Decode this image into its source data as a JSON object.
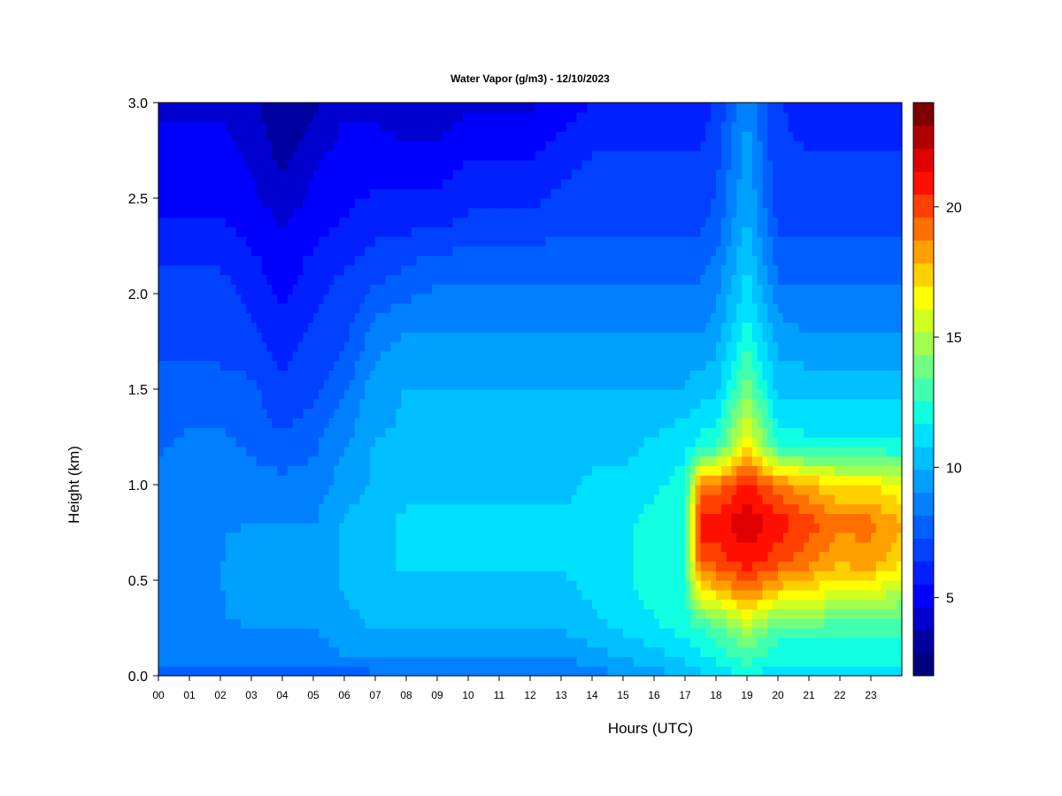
{
  "chart_data": {
    "type": "heatmap",
    "title": "Water Vapor (g/m3) - 12/10/2023",
    "xlabel": "Hours (UTC)",
    "ylabel": "Height (km)",
    "x_ticks": [
      "00",
      "01",
      "02",
      "03",
      "04",
      "05",
      "06",
      "07",
      "08",
      "09",
      "10",
      "11",
      "12",
      "13",
      "14",
      "15",
      "16",
      "17",
      "18",
      "19",
      "20",
      "21",
      "22",
      "23"
    ],
    "y_ticks": [
      "0.0",
      "0.5",
      "1.0",
      "1.5",
      "2.0",
      "2.5",
      "3.0"
    ],
    "xlim": [
      0,
      24
    ],
    "ylim": [
      0,
      3.0
    ],
    "colorbar": {
      "ticks": [
        "5",
        "10",
        "15",
        "20"
      ],
      "range": [
        2,
        24
      ],
      "colors": [
        "#00007f",
        "#00009f",
        "#0000cf",
        "#0000ff",
        "#0020ff",
        "#0040ff",
        "#0060ff",
        "#0080ff",
        "#00a0ff",
        "#00c0ff",
        "#00e0ff",
        "#10ffe0",
        "#40ffb0",
        "#70ff80",
        "#a0ff50",
        "#d0ff20",
        "#ffff00",
        "#ffd000",
        "#ffa000",
        "#ff7000",
        "#ff4000",
        "#ff1000",
        "#df0000",
        "#af0000",
        "#7f0000"
      ]
    },
    "profile_hours": [
      0,
      1,
      2,
      3,
      4,
      5,
      6,
      7,
      8,
      9,
      10,
      11,
      12,
      13,
      14,
      15,
      16,
      17,
      17.5,
      18,
      19,
      20,
      21,
      22,
      23,
      24
    ],
    "profile_heights_km": [
      0.0,
      0.1,
      0.25,
      0.45,
      0.6,
      0.8,
      1.0,
      1.2,
      1.5,
      1.8,
      2.1,
      2.4,
      2.7,
      3.0
    ],
    "values_g_m3": [
      [
        8.0,
        8.5,
        8.5,
        8.5,
        8.5,
        8.5,
        8.5,
        8.0,
        7.5,
        7.0,
        6.5,
        5.5,
        5.0,
        4.5
      ],
      [
        8.0,
        8.5,
        9.0,
        9.0,
        9.0,
        9.0,
        9.0,
        8.5,
        7.5,
        7.0,
        6.5,
        5.5,
        5.0,
        4.5
      ],
      [
        8.0,
        8.5,
        9.0,
        9.0,
        9.0,
        9.0,
        9.0,
        8.5,
        7.5,
        7.0,
        6.5,
        5.5,
        5.0,
        4.5
      ],
      [
        7.5,
        8.5,
        9.0,
        9.5,
        9.5,
        9.0,
        8.5,
        8.0,
        7.5,
        6.5,
        6.0,
        5.0,
        4.5,
        4.0
      ],
      [
        7.5,
        8.5,
        9.0,
        9.5,
        9.5,
        9.0,
        8.5,
        7.5,
        6.5,
        6.0,
        5.0,
        4.5,
        3.5,
        3.0
      ],
      [
        7.5,
        8.5,
        9.0,
        9.5,
        9.5,
        9.0,
        8.5,
        8.0,
        7.0,
        6.5,
        6.0,
        5.0,
        4.5,
        3.5
      ],
      [
        7.5,
        9.0,
        9.5,
        10.0,
        10.0,
        10.0,
        9.5,
        9.0,
        8.0,
        7.0,
        6.5,
        5.5,
        5.0,
        4.5
      ],
      [
        8.0,
        9.0,
        10.0,
        10.5,
        10.5,
        10.5,
        10.0,
        10.0,
        9.5,
        8.5,
        7.0,
        6.0,
        5.0,
        4.5
      ],
      [
        8.0,
        9.0,
        10.0,
        10.5,
        11.0,
        11.0,
        10.5,
        10.0,
        10.0,
        9.0,
        7.5,
        6.0,
        5.0,
        4.0
      ],
      [
        8.0,
        9.0,
        10.0,
        10.5,
        11.0,
        11.0,
        10.5,
        10.5,
        10.0,
        9.0,
        8.0,
        6.0,
        5.0,
        4.0
      ],
      [
        8.0,
        9.0,
        10.0,
        10.5,
        11.0,
        11.0,
        10.5,
        10.5,
        10.0,
        9.0,
        8.0,
        6.5,
        5.5,
        4.5
      ],
      [
        8.0,
        9.0,
        10.0,
        10.5,
        11.0,
        11.0,
        10.5,
        10.5,
        10.0,
        9.0,
        8.0,
        6.5,
        5.5,
        4.5
      ],
      [
        8.0,
        9.0,
        10.0,
        10.5,
        11.0,
        11.0,
        10.5,
        10.5,
        10.0,
        9.0,
        8.0,
        6.5,
        5.5,
        4.5
      ],
      [
        8.0,
        9.0,
        10.0,
        10.5,
        11.0,
        11.0,
        10.5,
        10.5,
        10.0,
        9.0,
        8.0,
        7.0,
        6.0,
        5.0
      ],
      [
        8.5,
        9.5,
        10.5,
        11.0,
        11.0,
        11.0,
        11.0,
        10.5,
        10.0,
        9.0,
        8.0,
        7.0,
        6.5,
        5.5
      ],
      [
        9.0,
        10.0,
        11.0,
        11.5,
        11.5,
        11.5,
        11.0,
        10.5,
        10.0,
        9.0,
        8.0,
        7.0,
        6.5,
        6.0
      ],
      [
        9.5,
        10.5,
        11.5,
        12.0,
        12.0,
        12.0,
        11.5,
        11.0,
        10.0,
        9.0,
        8.0,
        7.0,
        6.5,
        6.0
      ],
      [
        10.0,
        11.0,
        12.0,
        12.5,
        12.5,
        12.5,
        12.0,
        11.5,
        10.0,
        9.0,
        8.0,
        7.0,
        6.5,
        6.0
      ],
      [
        10.5,
        11.5,
        12.5,
        17.0,
        20.0,
        21.0,
        19.0,
        12.0,
        10.5,
        9.0,
        8.0,
        7.0,
        6.5,
        6.0
      ],
      [
        11.0,
        12.0,
        13.0,
        17.5,
        20.0,
        21.0,
        19.0,
        12.5,
        10.5,
        9.5,
        8.5,
        7.5,
        7.0,
        6.5
      ],
      [
        12.0,
        13.0,
        15.0,
        19.0,
        21.0,
        22.0,
        21.0,
        17.0,
        14.0,
        12.0,
        11.0,
        10.0,
        9.5,
        9.0
      ],
      [
        11.0,
        12.0,
        13.0,
        17.5,
        20.0,
        21.0,
        19.0,
        12.5,
        10.5,
        9.5,
        8.0,
        7.0,
        6.5,
        6.5
      ],
      [
        11.0,
        12.0,
        13.0,
        17.0,
        19.0,
        20.0,
        18.0,
        12.0,
        10.5,
        9.0,
        8.0,
        7.0,
        6.5,
        6.0
      ],
      [
        11.0,
        12.0,
        13.0,
        16.0,
        18.0,
        19.0,
        17.0,
        12.0,
        10.5,
        9.0,
        8.0,
        7.0,
        6.5,
        6.0
      ],
      [
        11.0,
        12.0,
        13.0,
        16.0,
        18.5,
        19.0,
        17.0,
        12.0,
        10.5,
        9.0,
        8.0,
        7.0,
        6.5,
        6.0
      ],
      [
        11.0,
        12.0,
        13.0,
        15.0,
        17.0,
        18.0,
        16.0,
        12.0,
        10.5,
        9.0,
        8.0,
        7.0,
        6.5,
        6.0
      ]
    ]
  }
}
